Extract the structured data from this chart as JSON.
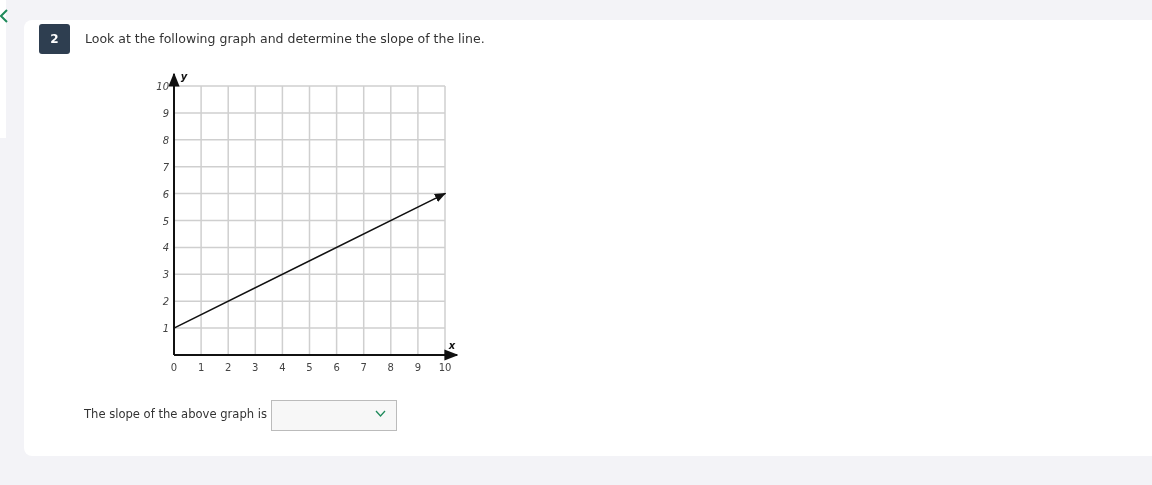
{
  "chart_data": {
    "type": "line",
    "title": "Look at the following graph and determine the slope of the line.",
    "xlabel": "x",
    "ylabel": "y",
    "annotations": [
      "2",
      "The slope of the above graph is"
    ],
    "series": [
      {
        "color": "#111111",
        "x": [
          0,
          10
        ],
        "values": [
          1,
          6
        ]
      }
    ],
    "xlim": [
      0,
      10
    ],
    "ylim": [
      0,
      10
    ],
    "xticks": [
      0,
      1,
      2,
      3,
      4,
      5,
      6,
      7,
      8,
      9,
      10
    ],
    "yticks": [
      {
        "value": 0,
        "label": null
      },
      1,
      2,
      3,
      4,
      5,
      6,
      7,
      8,
      9,
      10
    ],
    "grid": true,
    "marker": "none",
    "line_style": "solid"
  }
}
